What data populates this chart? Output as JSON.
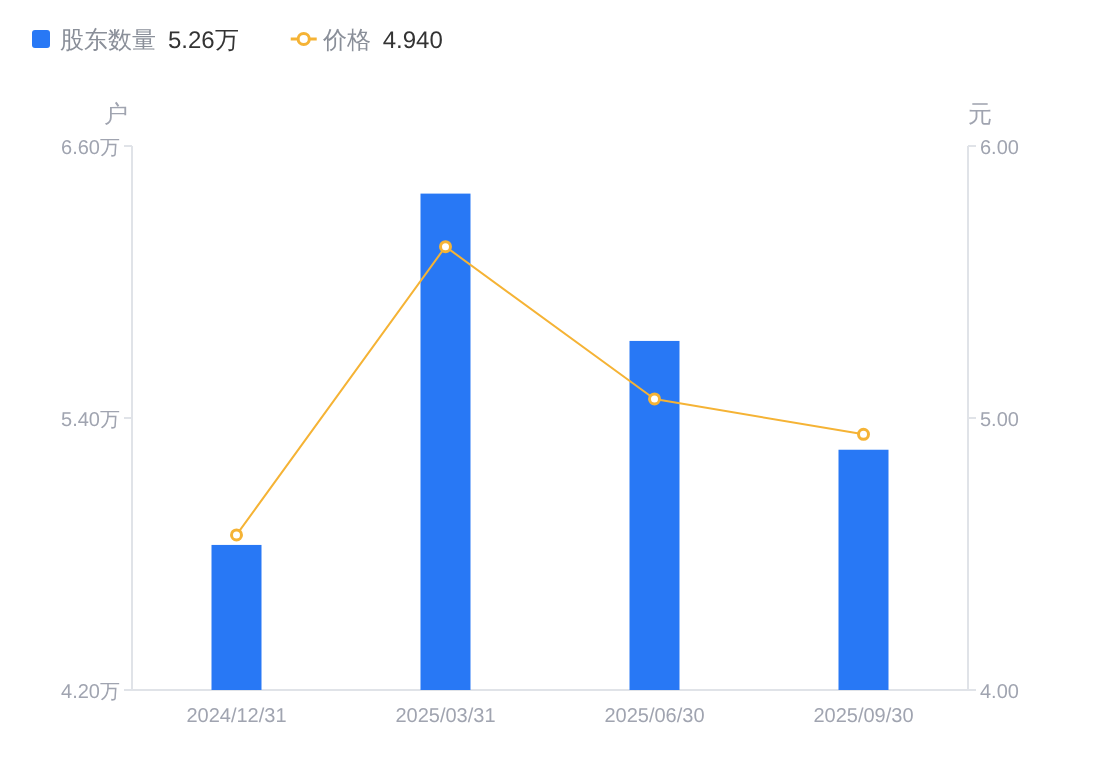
{
  "chart_data": {
    "type": "bar",
    "categories": [
      "2024/12/31",
      "2025/03/31",
      "2025/06/30",
      "2025/09/30"
    ],
    "series": [
      {
        "name": "股东数量",
        "color": "#2878f5",
        "values": [
          4.84,
          6.39,
          5.74,
          5.26
        ]
      },
      {
        "name": "价格",
        "type": "line",
        "axis": "y2",
        "color": "#f5b335",
        "values": [
          4.57,
          5.63,
          5.07,
          4.94
        ]
      }
    ],
    "ylabel": "户",
    "y2label": "元",
    "ylim": [
      4.2,
      6.6
    ],
    "yticks": [
      {
        "value": 4.2,
        "label": "4.20万"
      },
      {
        "value": 5.4,
        "label": "5.40万"
      },
      {
        "value": 6.6,
        "label": "6.60万"
      }
    ],
    "y2lim": [
      4.0,
      6.0
    ],
    "y2ticks": [
      {
        "value": 4.0,
        "label": "4.00"
      },
      {
        "value": 5.0,
        "label": "5.00"
      },
      {
        "value": 6.0,
        "label": "6.00"
      }
    ],
    "legend": "top left",
    "marker": "circle",
    "annotations": [
      "5.26万",
      "4.940"
    ]
  }
}
